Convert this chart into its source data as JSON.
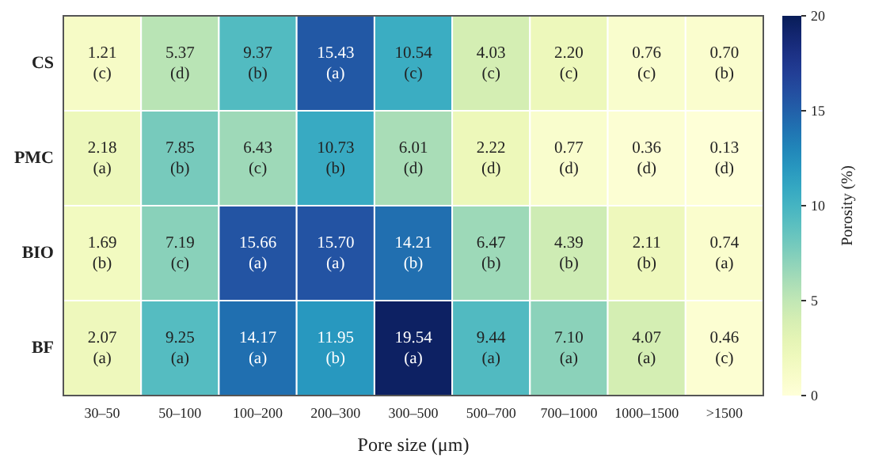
{
  "chart_data": {
    "type": "heatmap",
    "xlabel": "Pore size (μm)",
    "clabel": "Porosity (%)",
    "categories": [
      "30–50",
      "50–100",
      "100–200",
      "200–300",
      "300–500",
      "500–700",
      "700–1000",
      "1000–1500",
      ">1500"
    ],
    "y_categories": [
      "CS",
      "PMC",
      "BIO",
      "BF"
    ],
    "cells": [
      [
        1.21,
        5.37,
        9.37,
        15.43,
        10.54,
        4.03,
        2.2,
        0.76,
        0.7
      ],
      [
        2.18,
        7.85,
        6.43,
        10.73,
        6.01,
        2.22,
        0.77,
        0.36,
        0.13
      ],
      [
        1.69,
        7.19,
        15.66,
        15.7,
        14.21,
        6.47,
        4.39,
        2.11,
        0.74
      ],
      [
        2.07,
        9.25,
        14.17,
        11.95,
        19.54,
        9.44,
        7.1,
        4.07,
        0.46
      ]
    ],
    "cell_labels": [
      [
        "1.21\n(c)",
        "5.37\n(d)",
        "9.37\n(b)",
        "15.43\n(a)",
        "10.54\n(c)",
        "4.03\n(c)",
        "2.20\n(c)",
        "0.76\n(c)",
        "0.70\n(b)"
      ],
      [
        "2.18\n(a)",
        "7.85\n(b)",
        "6.43\n(c)",
        "10.73\n(b)",
        "6.01\n(d)",
        "2.22\n(d)",
        "0.77\n(d)",
        "0.36\n(d)",
        "0.13\n(d)"
      ],
      [
        "1.69\n(b)",
        "7.19\n(c)",
        "15.66\n(a)",
        "15.70\n(a)",
        "14.21\n(b)",
        "6.47\n(b)",
        "4.39\n(b)",
        "2.11\n(b)",
        "0.74\n(a)"
      ],
      [
        "2.07\n(a)",
        "9.25\n(a)",
        "14.17\n(a)",
        "11.95\n(b)",
        "19.54\n(a)",
        "9.44\n(a)",
        "7.10\n(a)",
        "4.07\n(a)",
        "0.46\n(c)"
      ]
    ],
    "clim": [
      0,
      20
    ],
    "cticks": [
      0,
      5,
      10,
      15,
      20
    ]
  }
}
